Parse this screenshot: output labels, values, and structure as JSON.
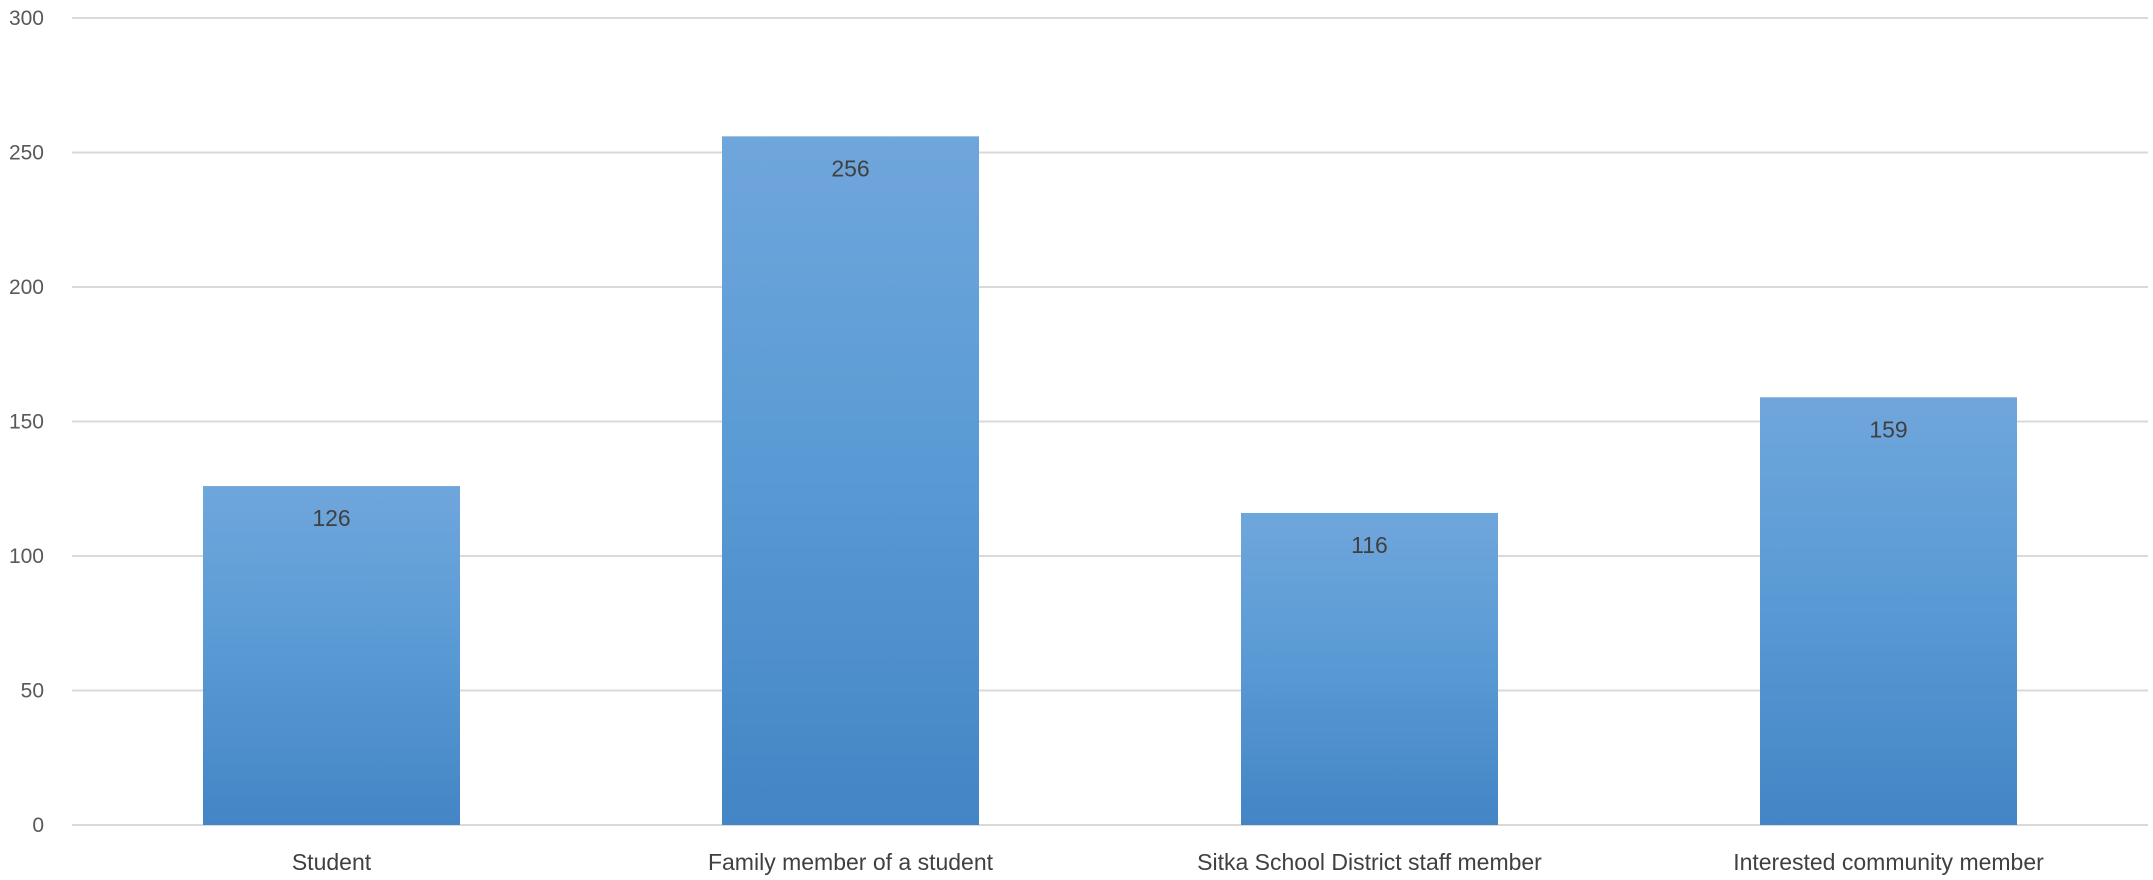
{
  "chart_data": {
    "type": "bar",
    "title": "",
    "xlabel": "",
    "ylabel": "",
    "categories": [
      "Student",
      "Family member of a student",
      "Sitka School District staff member",
      "Interested community member"
    ],
    "values": [
      126,
      256,
      116,
      159
    ],
    "data_labels": [
      "126",
      "256",
      "116",
      "159"
    ],
    "ylim": [
      0,
      300
    ],
    "yticks": [
      0,
      50,
      100,
      150,
      200,
      250,
      300
    ],
    "ytick_labels": [
      "0",
      "50",
      "100",
      "150",
      "200",
      "250",
      "300"
    ],
    "grid": true,
    "legend": "none",
    "colors": {
      "bar_top": "#6fa6dc",
      "bar_mid": "#5b9bd5",
      "bar_bottom": "#4385c5",
      "gridline": "#d9d9d9"
    }
  }
}
